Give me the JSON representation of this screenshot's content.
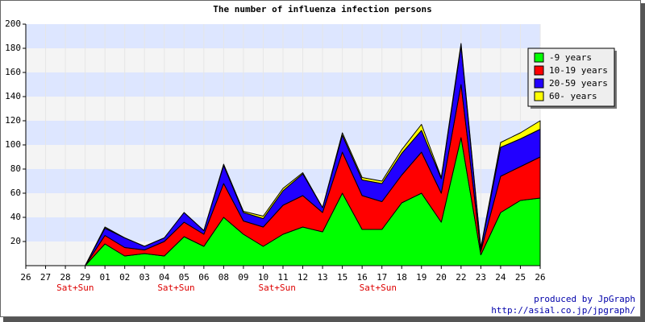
{
  "chart_data": {
    "type": "stacked_area",
    "title": "The number of influenza infection persons",
    "categories": [
      "26",
      "27",
      "28",
      "29",
      "01",
      "02",
      "03",
      "04",
      "05",
      "06",
      "08",
      "09",
      "10",
      "11",
      "12",
      "13",
      "15",
      "16",
      "17",
      "18",
      "19",
      "20",
      "22",
      "23",
      "24",
      "25",
      "26"
    ],
    "series": [
      {
        "name": "-9 years",
        "color": "#00ff00",
        "values": [
          0,
          0,
          0,
          0,
          18,
          8,
          10,
          8,
          24,
          16,
          40,
          26,
          16,
          26,
          32,
          28,
          60,
          30,
          30,
          52,
          60,
          36,
          106,
          9,
          44,
          54,
          56
        ]
      },
      {
        "name": "10-19 years",
        "color": "#ff0000",
        "values": [
          0,
          0,
          0,
          0,
          7,
          7,
          3,
          12,
          12,
          10,
          28,
          11,
          16,
          24,
          26,
          16,
          34,
          28,
          23,
          23,
          34,
          24,
          44,
          3,
          30,
          28,
          34
        ]
      },
      {
        "name": "20-59 years",
        "color": "#2200ff",
        "values": [
          0,
          0,
          0,
          0,
          6,
          8,
          3,
          3,
          8,
          3,
          15,
          7,
          7,
          12,
          18,
          4,
          14,
          13,
          15,
          18,
          18,
          12,
          32,
          2,
          24,
          23,
          23
        ]
      },
      {
        "name": "60- years",
        "color": "#ffff00",
        "values": [
          0,
          0,
          0,
          0,
          1,
          0,
          0,
          0,
          0,
          0,
          1,
          1,
          2,
          2,
          1,
          0,
          2,
          2,
          2,
          3,
          5,
          1,
          2,
          1,
          4,
          5,
          7
        ]
      }
    ],
    "ylim": [
      0,
      200
    ],
    "yticks": [
      20,
      40,
      60,
      80,
      100,
      120,
      140,
      160,
      180,
      200
    ],
    "grid": true,
    "band_colors": [
      "#dde6ff",
      "#f4f4f4"
    ],
    "annotations": [
      {
        "text": "Sat+Sun",
        "x": 2.5
      },
      {
        "text": "Sat+Sun",
        "x": 7.6
      },
      {
        "text": "Sat+Sun",
        "x": 12.7
      },
      {
        "text": "Sat+Sun",
        "x": 17.8
      }
    ],
    "annotation_color": "#dd0000",
    "legend": "top-right",
    "footer": [
      "produced by JpGraph",
      "http://asial.co.jp/jpgraph/"
    ]
  }
}
